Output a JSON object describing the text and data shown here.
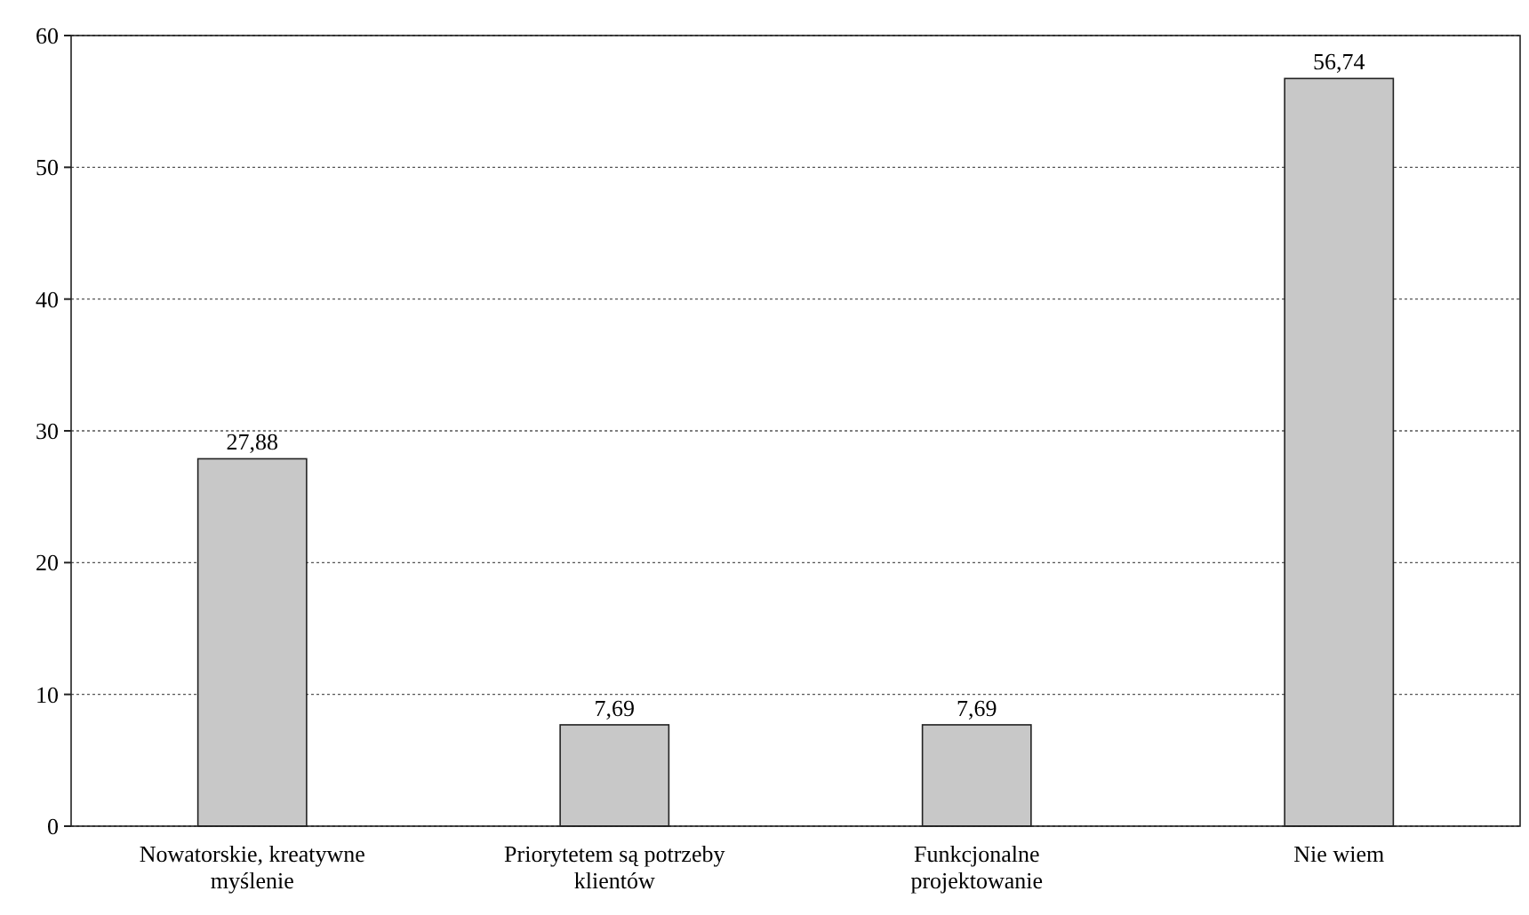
{
  "chart_data": {
    "type": "bar",
    "categories": [
      "Nowatorskie, kreatywne myślenie",
      "Priorytetem są potrzeby klientów",
      "Funkcjonalne projektowanie",
      "Nie wiem"
    ],
    "values": [
      27.88,
      7.69,
      7.69,
      56.74
    ],
    "value_labels": [
      "27,88",
      "7,69",
      "7,69",
      "56,74"
    ],
    "color": "#c8c8c8",
    "ylim": [
      0,
      60
    ],
    "yticks": [
      0,
      10,
      20,
      30,
      40,
      50,
      60
    ],
    "grid": "y"
  }
}
